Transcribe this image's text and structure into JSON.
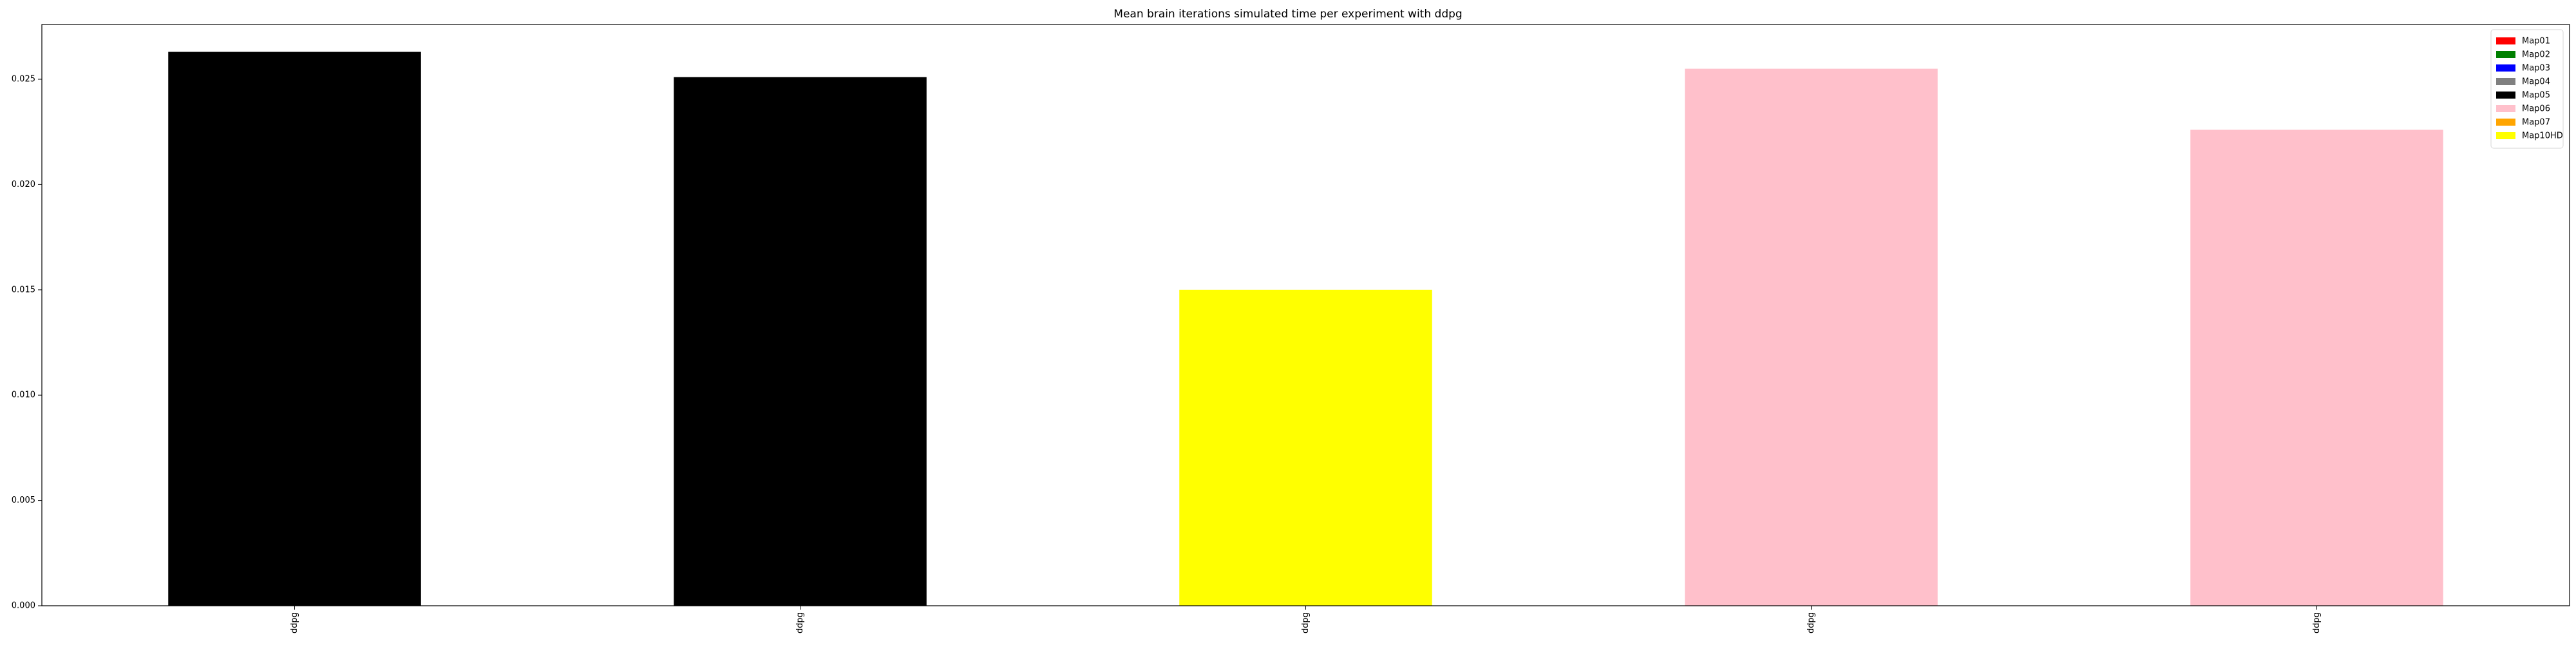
{
  "chart_data": {
    "type": "bar",
    "title": "Mean brain iterations simulated time per experiment with ddpg",
    "xlabel": "",
    "ylabel": "",
    "categories": [
      "ddpg",
      "ddpg",
      "ddpg",
      "ddpg",
      "ddpg"
    ],
    "values": [
      0.0263,
      0.0251,
      0.015,
      0.0255,
      0.0226
    ],
    "bar_colors": [
      "#000000",
      "#000000",
      "#ffff00",
      "#ffc0cb",
      "#ffc0cb"
    ],
    "ylim": [
      0,
      0.0276
    ],
    "yticks": [
      {
        "value": 0.0,
        "label": "0.000"
      },
      {
        "value": 0.005,
        "label": "0.005"
      },
      {
        "value": 0.01,
        "label": "0.010"
      },
      {
        "value": 0.015,
        "label": "0.015"
      },
      {
        "value": 0.02,
        "label": "0.020"
      },
      {
        "value": 0.025,
        "label": "0.025"
      }
    ],
    "grid": false,
    "legend_position": "top-right",
    "legend": [
      {
        "label": "Map01",
        "color": "#ff0000"
      },
      {
        "label": "Map02",
        "color": "#008000"
      },
      {
        "label": "Map03",
        "color": "#0000ff"
      },
      {
        "label": "Map04",
        "color": "#808080"
      },
      {
        "label": "Map05",
        "color": "#000000"
      },
      {
        "label": "Map06",
        "color": "#ffc0cb"
      },
      {
        "label": "Map07",
        "color": "#ffa500"
      },
      {
        "label": "Map10HD",
        "color": "#ffff00"
      }
    ]
  }
}
